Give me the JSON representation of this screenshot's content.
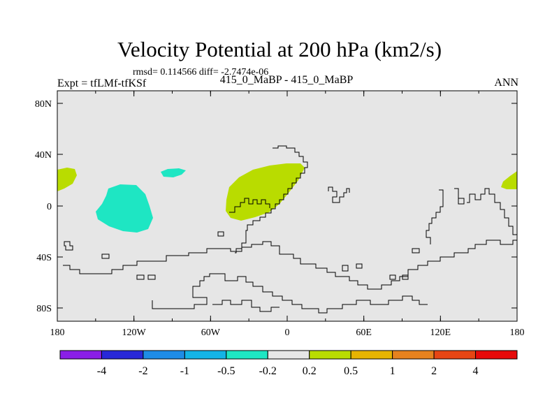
{
  "title": "Velocity Potential at 200 hPa (km2/s)",
  "stats": "rmsd= 0.114566 diff= -2.7474e-06",
  "experiment": "Expt = tfLMf-tfKSf",
  "center_label": "415_0_MaBP - 415_0_MaBP",
  "season": "ANN",
  "map": {
    "background_color": "#e6e6e6",
    "lat_ticks": [
      "80N",
      "40N",
      "0",
      "40S",
      "80S"
    ],
    "lon_ticks": [
      "180",
      "120W",
      "60W",
      "0",
      "60E",
      "120E",
      "180"
    ]
  },
  "colorbar": {
    "colors": [
      "#8a1ee6",
      "#2828d8",
      "#1e8ce6",
      "#14b4e6",
      "#1ee6c3",
      "#e6e6e6",
      "#b9dc00",
      "#e6b400",
      "#e6821e",
      "#e64614",
      "#e60a0a"
    ],
    "labels": [
      "-4",
      "-2",
      "-1",
      "-0.5",
      "-0.2",
      "0.2",
      "0.5",
      "1",
      "2",
      "4"
    ]
  }
}
